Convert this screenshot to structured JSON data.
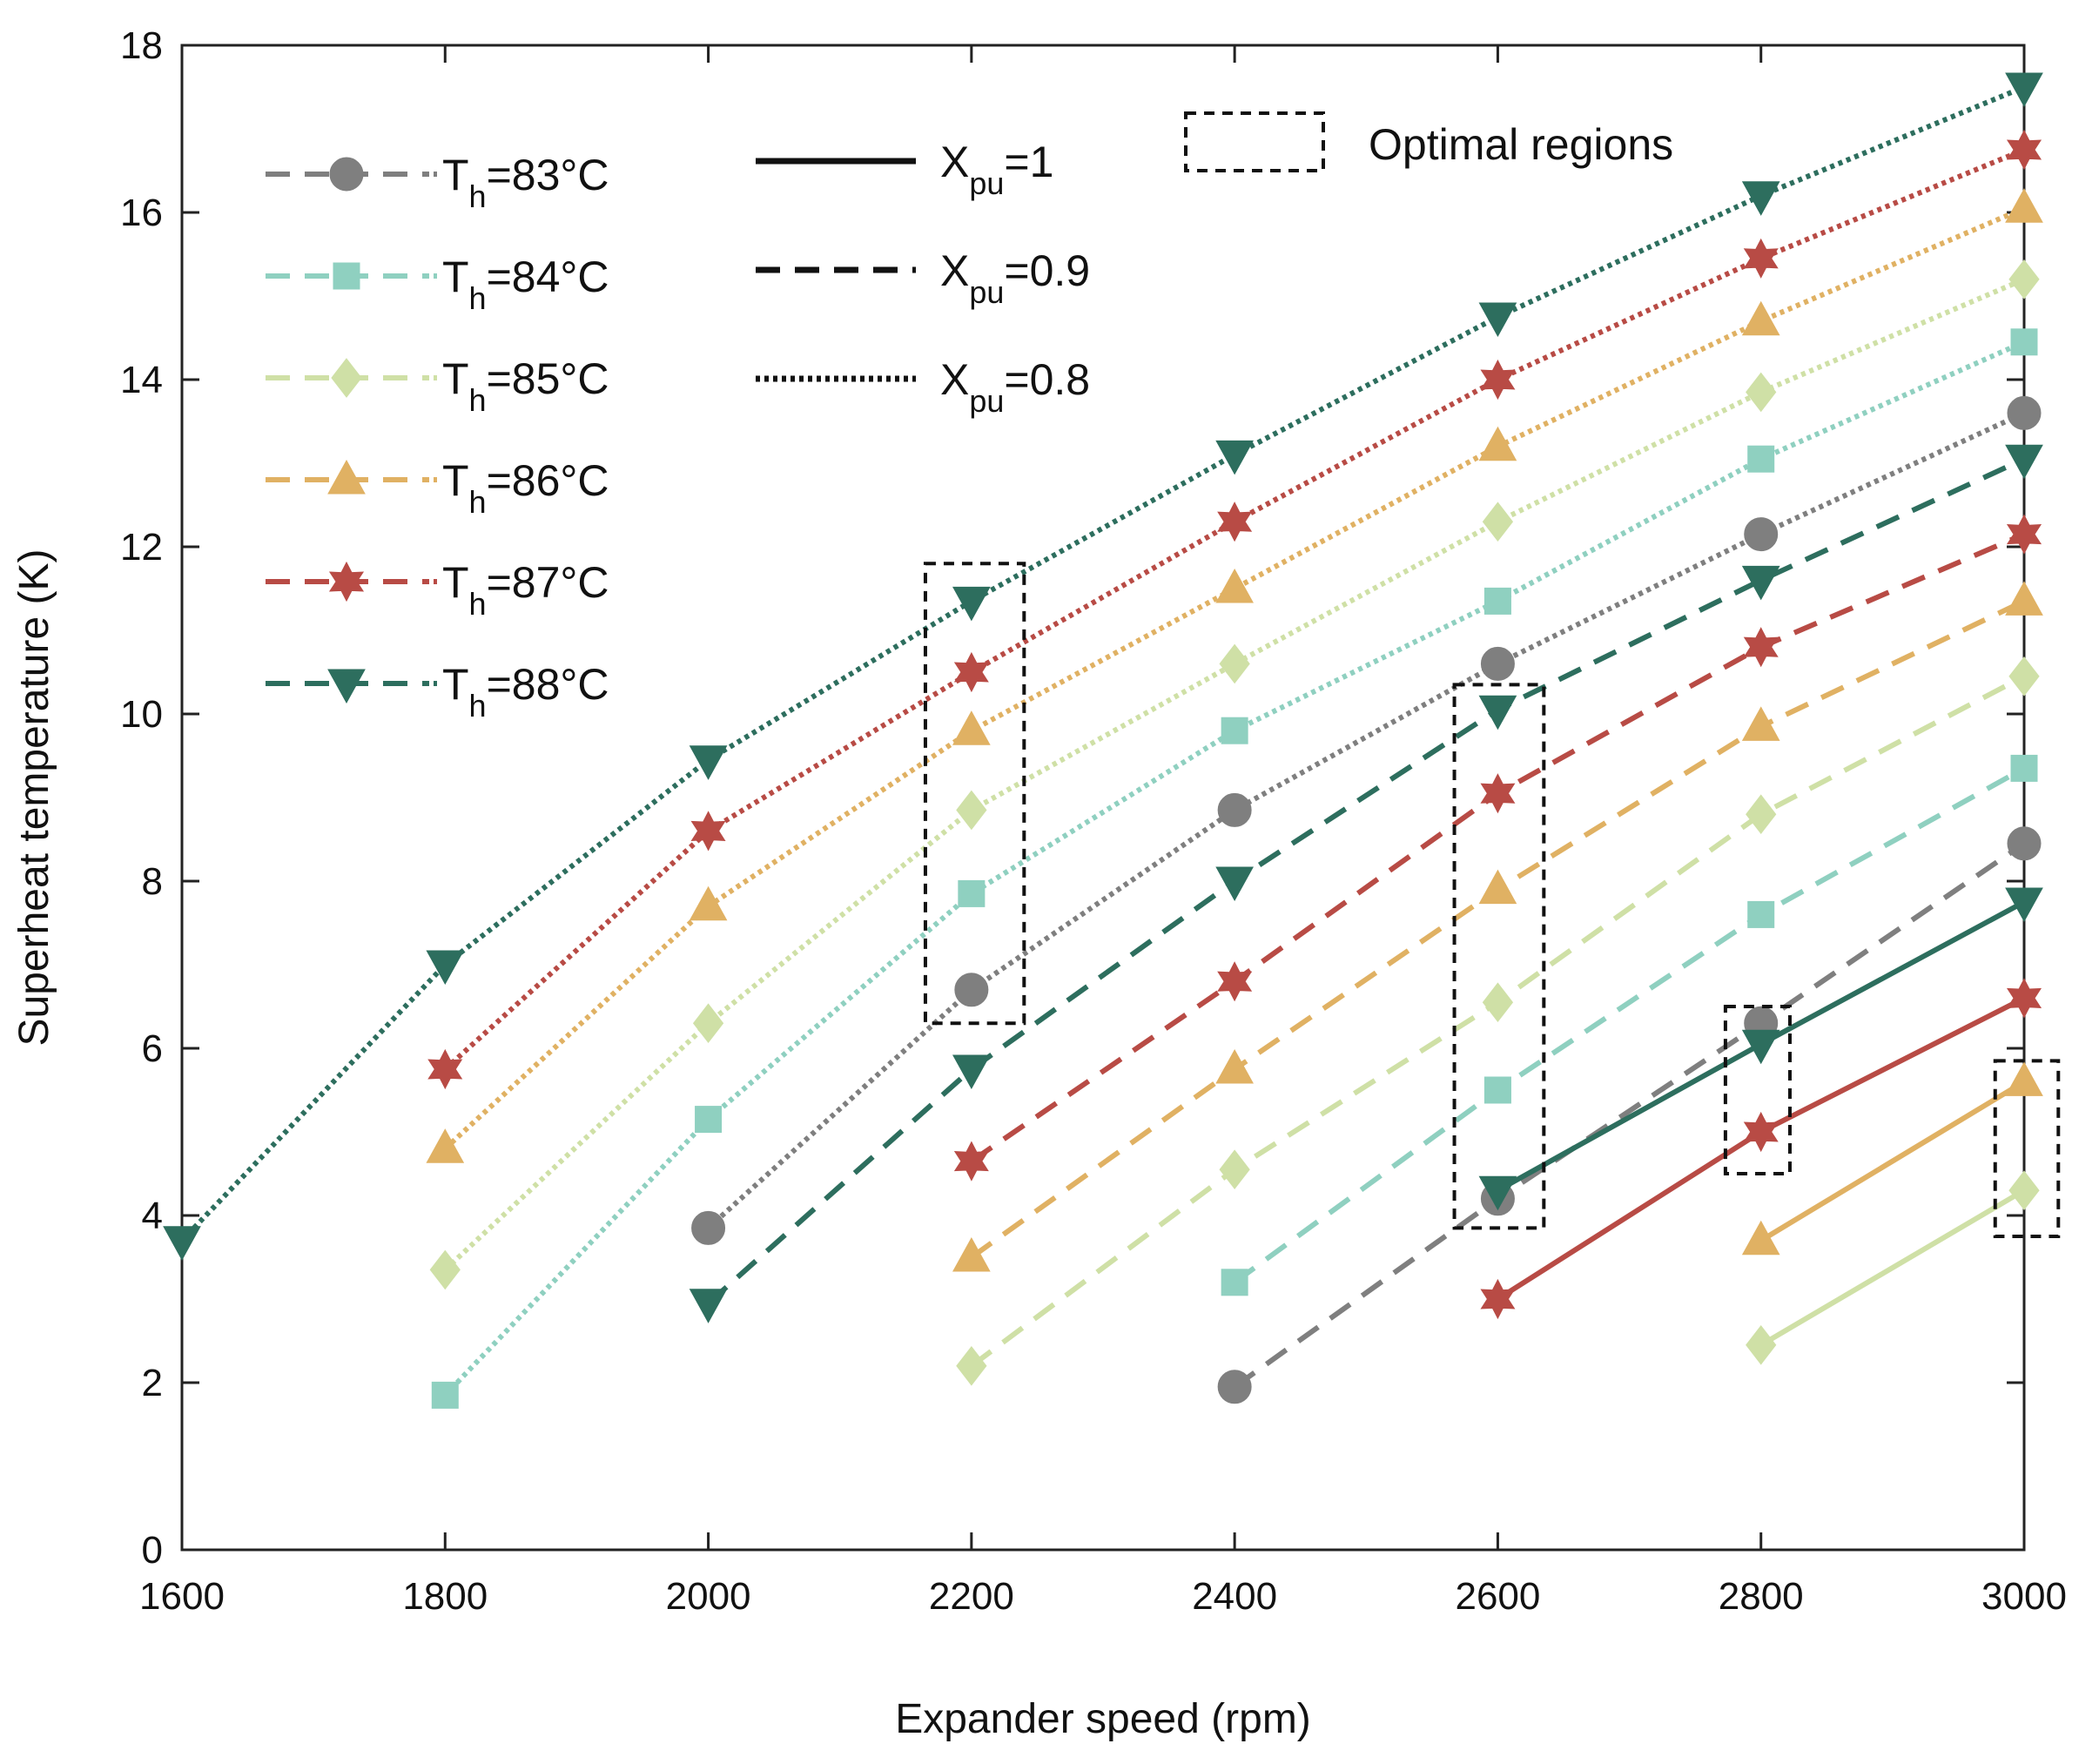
{
  "chart_data": {
    "type": "line",
    "title": "",
    "xlabel": "Expander speed (rpm)",
    "ylabel": "Superheat temperature (K)",
    "xlim": [
      1600,
      3000
    ],
    "ylim": [
      0,
      18
    ],
    "xticks": [
      1600,
      1800,
      2000,
      2200,
      2400,
      2600,
      2800,
      3000
    ],
    "yticks": [
      0,
      2,
      4,
      6,
      8,
      10,
      12,
      14,
      16,
      18
    ],
    "colors": {
      "83": "#7f7f7f",
      "84": "#8fd0c0",
      "85": "#cfe0a6",
      "86": "#e0b163",
      "87": "#b84b45",
      "88": "#2d6e5e"
    },
    "markers": {
      "83": "circle",
      "84": "square",
      "85": "diamond",
      "86": "triangle-up",
      "87": "hexagram",
      "88": "triangle-down"
    },
    "series": [
      {
        "name": "Th=83°C, Xpu=0.8",
        "th": "83",
        "style": "dotted",
        "x": [
          2000,
          2200,
          2400,
          2600,
          2800,
          3000
        ],
        "y": [
          3.85,
          6.7,
          8.85,
          10.6,
          12.15,
          13.6
        ]
      },
      {
        "name": "Th=84°C, Xpu=0.8",
        "th": "84",
        "style": "dotted",
        "x": [
          1800,
          2000,
          2200,
          2400,
          2600,
          2800,
          3000
        ],
        "y": [
          1.85,
          5.15,
          7.85,
          9.8,
          11.35,
          13.05,
          14.45
        ]
      },
      {
        "name": "Th=85°C, Xpu=0.8",
        "th": "85",
        "style": "dotted",
        "x": [
          1800,
          2000,
          2200,
          2400,
          2600,
          2800,
          3000
        ],
        "y": [
          3.35,
          6.3,
          8.85,
          10.6,
          12.3,
          13.85,
          15.2
        ]
      },
      {
        "name": "Th=86°C, Xpu=0.8",
        "th": "86",
        "style": "dotted",
        "x": [
          1800,
          2000,
          2200,
          2400,
          2600,
          2800,
          3000
        ],
        "y": [
          4.8,
          7.7,
          9.8,
          11.5,
          13.2,
          14.7,
          16.05
        ]
      },
      {
        "name": "Th=87°C, Xpu=0.8",
        "th": "87",
        "style": "dotted",
        "x": [
          1800,
          2000,
          2200,
          2400,
          2600,
          2800,
          3000
        ],
        "y": [
          5.75,
          8.6,
          10.5,
          12.3,
          14.0,
          15.45,
          16.75
        ]
      },
      {
        "name": "Th=88°C, Xpu=0.8",
        "th": "88",
        "style": "dotted",
        "x": [
          1600,
          1800,
          2000,
          2200,
          2400,
          2600,
          2800,
          3000
        ],
        "y": [
          3.7,
          7.0,
          9.45,
          11.35,
          13.1,
          14.75,
          16.2,
          17.5
        ]
      },
      {
        "name": "Th=83°C, Xpu=0.9",
        "th": "83",
        "style": "dashed",
        "x": [
          2400,
          2600,
          2800,
          3000
        ],
        "y": [
          1.95,
          4.2,
          6.3,
          8.45
        ]
      },
      {
        "name": "Th=84°C, Xpu=0.9",
        "th": "84",
        "style": "dashed",
        "x": [
          2400,
          2600,
          2800,
          3000
        ],
        "y": [
          3.2,
          5.5,
          7.6,
          9.35
        ]
      },
      {
        "name": "Th=85°C, Xpu=0.9",
        "th": "85",
        "style": "dashed",
        "x": [
          2200,
          2400,
          2600,
          2800,
          3000
        ],
        "y": [
          2.2,
          4.55,
          6.55,
          8.8,
          10.45
        ]
      },
      {
        "name": "Th=86°C, Xpu=0.9",
        "th": "86",
        "style": "dashed",
        "x": [
          2200,
          2400,
          2600,
          2800,
          3000
        ],
        "y": [
          3.5,
          5.75,
          7.9,
          9.85,
          11.35
        ]
      },
      {
        "name": "Th=87°C, Xpu=0.9",
        "th": "87",
        "style": "dashed",
        "x": [
          2200,
          2400,
          2600,
          2800,
          3000
        ],
        "y": [
          4.65,
          6.8,
          9.05,
          10.8,
          12.15
        ]
      },
      {
        "name": "Th=88°C, Xpu=0.9",
        "th": "88",
        "style": "dashed",
        "x": [
          2000,
          2200,
          2400,
          2600,
          2800,
          3000
        ],
        "y": [
          2.95,
          5.75,
          8.0,
          10.05,
          11.6,
          13.05
        ]
      },
      {
        "name": "Th=85°C, Xpu=1",
        "th": "85",
        "style": "solid",
        "x": [
          2800,
          3000
        ],
        "y": [
          2.45,
          4.3
        ]
      },
      {
        "name": "Th=86°C, Xpu=1",
        "th": "86",
        "style": "solid",
        "x": [
          2800,
          3000
        ],
        "y": [
          3.7,
          5.6
        ]
      },
      {
        "name": "Th=87°C, Xpu=1",
        "th": "87",
        "style": "solid",
        "x": [
          2600,
          2800,
          3000
        ],
        "y": [
          3.0,
          5.0,
          6.6
        ]
      },
      {
        "name": "Th=88°C, Xpu=1",
        "th": "88",
        "style": "solid",
        "x": [
          2600,
          2800,
          3000
        ],
        "y": [
          4.3,
          6.05,
          7.75
        ]
      }
    ],
    "optimal_regions": [
      {
        "x": [
          2165,
          2240
        ],
        "y": [
          6.3,
          11.8
        ]
      },
      {
        "x": [
          2567,
          2635
        ],
        "y": [
          3.85,
          10.35
        ]
      },
      {
        "x": [
          2773,
          2822
        ],
        "y": [
          4.5,
          6.5
        ]
      },
      {
        "x": [
          2978,
          3026
        ],
        "y": [
          3.75,
          5.85
        ]
      }
    ],
    "legend": {
      "th_entries": [
        {
          "key": "83",
          "main": "T",
          "sub": "h",
          "rest": "=83°C"
        },
        {
          "key": "84",
          "main": "T",
          "sub": "h",
          "rest": "=84°C"
        },
        {
          "key": "85",
          "main": "T",
          "sub": "h",
          "rest": "=85°C"
        },
        {
          "key": "86",
          "main": "T",
          "sub": "h",
          "rest": "=86°C"
        },
        {
          "key": "87",
          "main": "T",
          "sub": "h",
          "rest": "=87°C"
        },
        {
          "key": "88",
          "main": "T",
          "sub": "h",
          "rest": "=88°C"
        }
      ],
      "xpu_entries": [
        {
          "style": "solid",
          "main": "X",
          "sub": "pu",
          "rest": "=1"
        },
        {
          "style": "dashed",
          "main": "X",
          "sub": "pu",
          "rest": "=0.9"
        },
        {
          "style": "dotted",
          "main": "X",
          "sub": "pu",
          "rest": "=0.8"
        }
      ],
      "region_label": "Optimal regions",
      "placement": "top"
    }
  }
}
